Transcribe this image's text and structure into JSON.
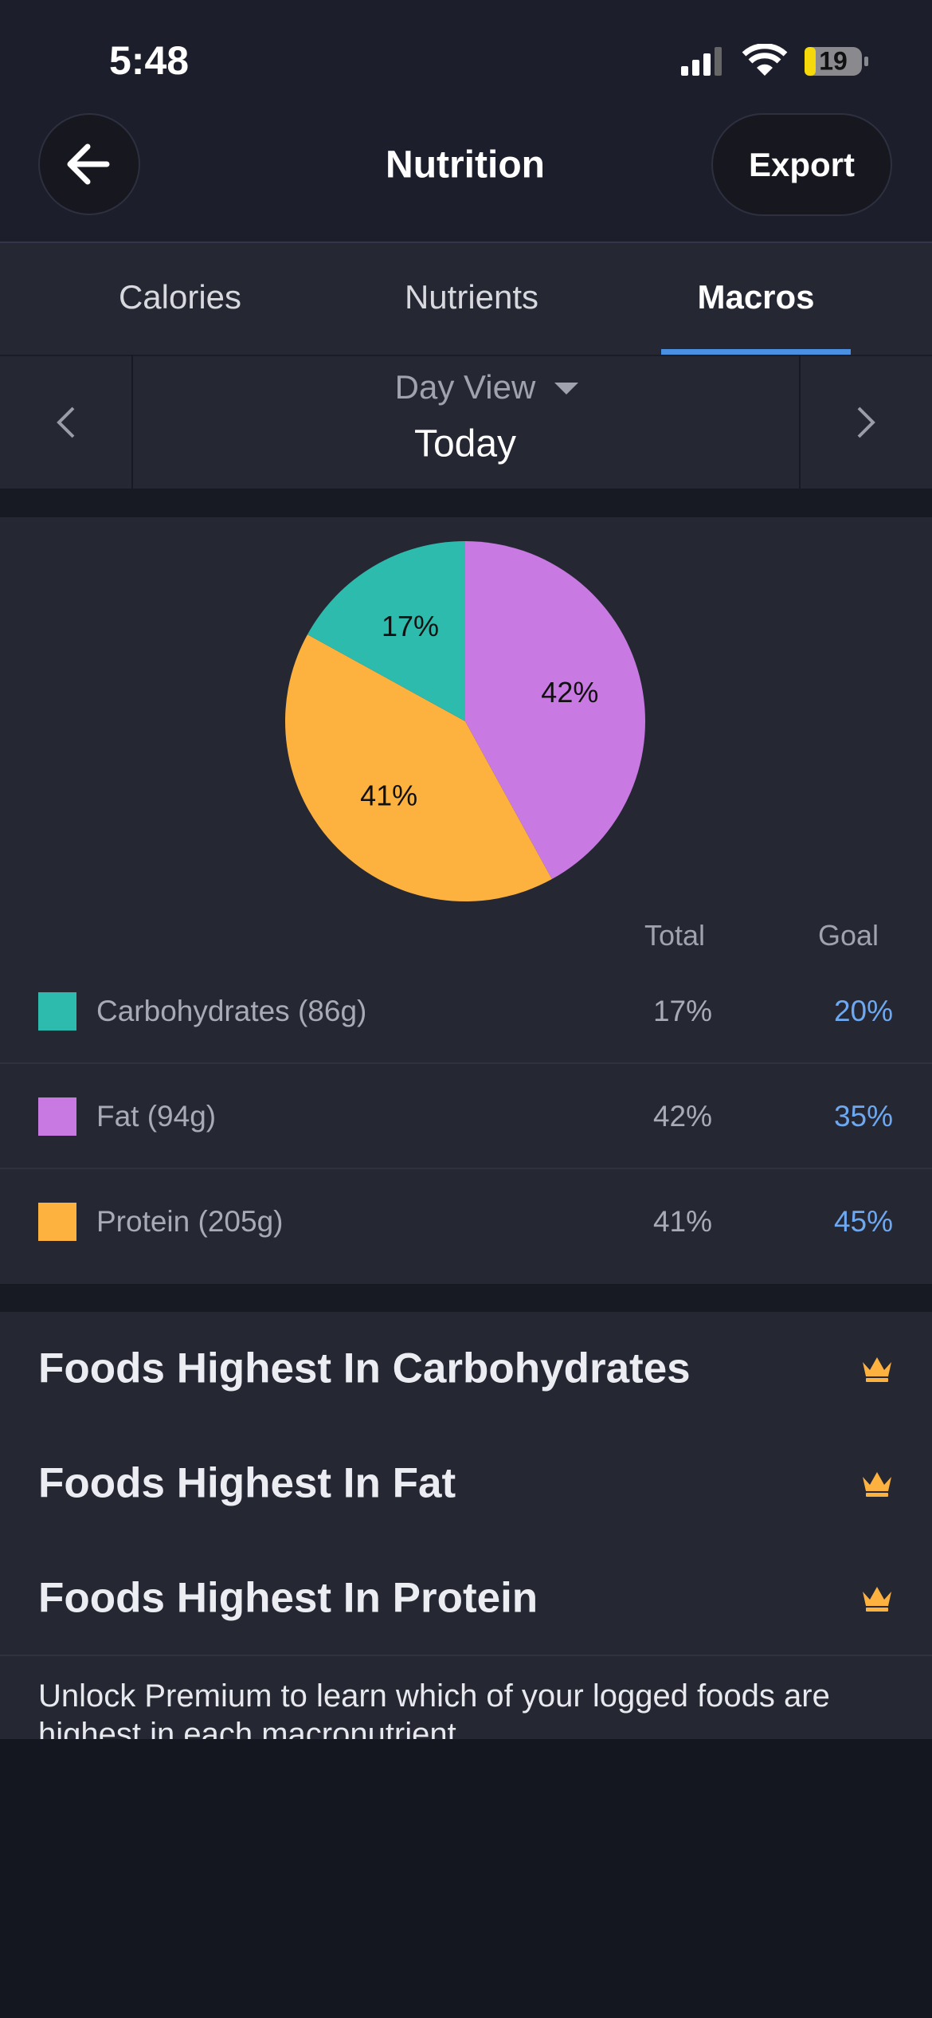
{
  "status_bar": {
    "time": "5:48",
    "battery": "19"
  },
  "header": {
    "title": "Nutrition",
    "action": "Export"
  },
  "tabs": [
    "Calories",
    "Nutrients",
    "Macros"
  ],
  "date_nav": {
    "view": "Day View",
    "date": "Today"
  },
  "chart_data": {
    "type": "pie",
    "values": [
      42,
      41,
      17
    ],
    "value_labels": [
      "42%",
      "41%",
      "17%"
    ],
    "colors": [
      "#c879e2",
      "#fdb23f",
      "#2dbbae"
    ]
  },
  "table": {
    "header": [
      "Total",
      "Goal"
    ],
    "rows": [
      {
        "name": "Carbohydrates (86g)",
        "total": "17%",
        "goal": "20%",
        "color": "#2dbbae"
      },
      {
        "name": "Fat (94g)",
        "total": "42%",
        "goal": "35%",
        "color": "#c879e2"
      },
      {
        "name": "Protein (205g)",
        "total": "41%",
        "goal": "45%",
        "color": "#fdb23f"
      }
    ]
  },
  "premium": {
    "items": [
      "Foods Highest In Carbohydrates",
      "Foods Highest In Fat",
      "Foods Highest In Protein"
    ],
    "note": "Unlock Premium to learn which of your logged foods are highest in each macronutrient."
  }
}
